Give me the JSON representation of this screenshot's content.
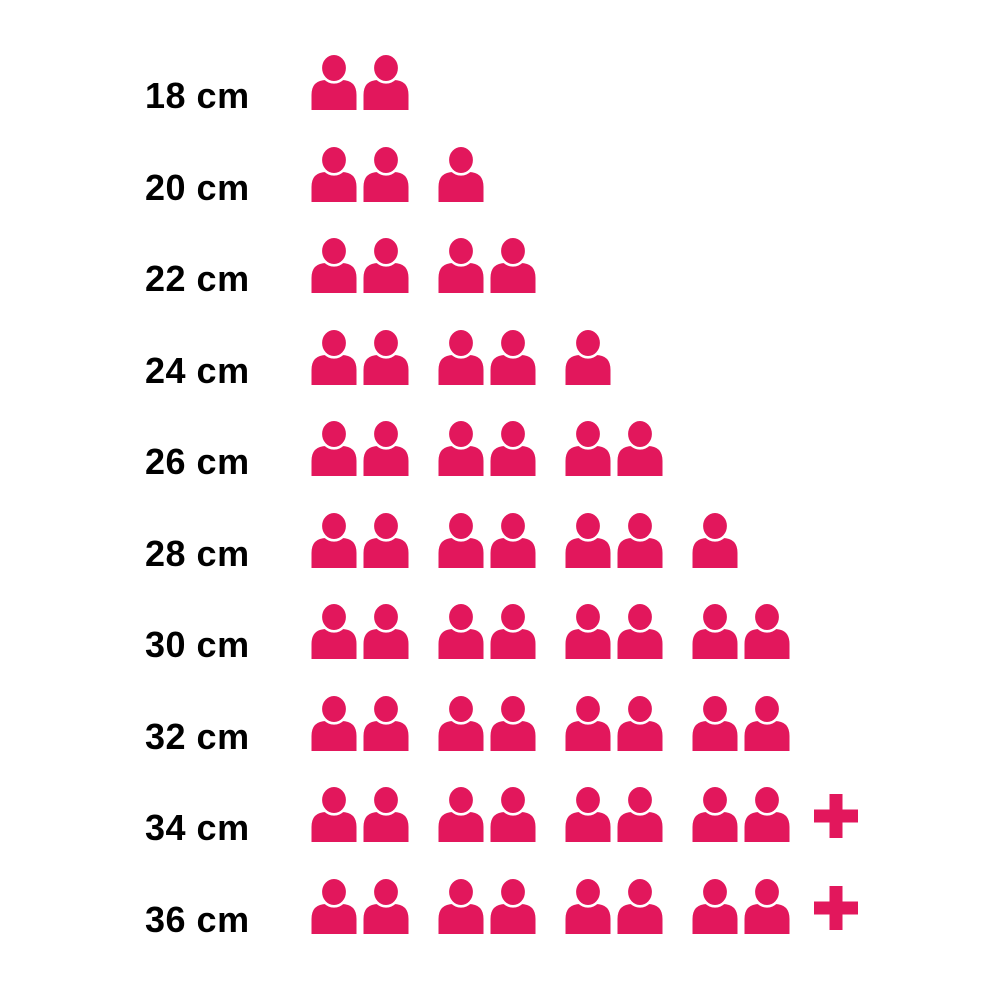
{
  "page": {
    "background_color": "#FFFFFF"
  },
  "chart_data": {
    "type": "pictogram",
    "icon": "person",
    "icon_color": "#E2175C",
    "label_color": "#000000",
    "group_size": 2,
    "legend": "none",
    "grid": false,
    "categories": [
      "18 cm",
      "20 cm",
      "22 cm",
      "24 cm",
      "26 cm",
      "28 cm",
      "30 cm",
      "32 cm",
      "34 cm",
      "36 cm"
    ],
    "values": [
      2,
      3,
      4,
      5,
      6,
      7,
      8,
      8,
      "8+",
      "8+"
    ],
    "rows": [
      {
        "label": "18 cm",
        "icons": 2,
        "plus": false
      },
      {
        "label": "20 cm",
        "icons": 3,
        "plus": false
      },
      {
        "label": "22 cm",
        "icons": 4,
        "plus": false
      },
      {
        "label": "24 cm",
        "icons": 5,
        "plus": false
      },
      {
        "label": "26 cm",
        "icons": 6,
        "plus": false
      },
      {
        "label": "28 cm",
        "icons": 7,
        "plus": false
      },
      {
        "label": "30 cm",
        "icons": 8,
        "plus": false
      },
      {
        "label": "32 cm",
        "icons": 8,
        "plus": false
      },
      {
        "label": "34 cm",
        "icons": 8,
        "plus": true
      },
      {
        "label": "36 cm",
        "icons": 8,
        "plus": true
      }
    ]
  }
}
